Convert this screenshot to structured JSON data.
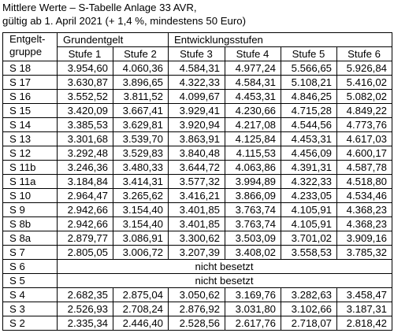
{
  "title_line1": "Mittlere Werte – S-Tabelle Anlage 33 AVR,",
  "title_line2": "gültig ab 1. April 2021 (+ 1,4 %, mindestens 50 Euro)",
  "corner_label_line1": "Entgelt-",
  "corner_label_line2": "gruppe",
  "header_grundentgelt": "Grundentgelt",
  "header_entwicklungsstufen": "Entwicklungsstufen",
  "stufen": [
    "Stufe 1",
    "Stufe 2",
    "Stufe 3",
    "Stufe 4",
    "Stufe 5",
    "Stufe 6"
  ],
  "rows": [
    {
      "group": "S 18",
      "values": [
        "3.954,60",
        "4.060,36",
        "4.584,31",
        "4.977,24",
        "5.566,65",
        "5.926,84"
      ]
    },
    {
      "group": "S 17",
      "values": [
        "3.630,87",
        "3.896,65",
        "4.322,33",
        "4.584,31",
        "5.108,21",
        "5.416,02"
      ]
    },
    {
      "group": "S 16",
      "values": [
        "3.552,52",
        "3.811,52",
        "4.099,67",
        "4.453,31",
        "4.846,25",
        "5.082,02"
      ]
    },
    {
      "group": "S 15",
      "values": [
        "3.420,09",
        "3.667,41",
        "3.929,41",
        "4.230,66",
        "4.715,28",
        "4.849,22"
      ]
    },
    {
      "group": "S 14",
      "values": [
        "3.385,53",
        "3.629,81",
        "3.920,94",
        "4.217,08",
        "4.544,56",
        "4.773,76"
      ]
    },
    {
      "group": "S 13",
      "values": [
        "3.301,68",
        "3.539,70",
        "3.863,91",
        "4.125,84",
        "4.453,31",
        "4.617,03"
      ]
    },
    {
      "group": "S 12",
      "values": [
        "3.292,48",
        "3.529,83",
        "3.840,48",
        "4.115,53",
        "4.456,09",
        "4.600,17"
      ]
    },
    {
      "group": "S 11b",
      "values": [
        "3.246,36",
        "3.480,33",
        "3.644,72",
        "4.063,86",
        "4.391,31",
        "4.587,78"
      ]
    },
    {
      "group": "S 11a",
      "values": [
        "3.184,84",
        "3.414,31",
        "3.577,32",
        "3.994,89",
        "4.322,33",
        "4.518,80"
      ]
    },
    {
      "group": "S 10",
      "values": [
        "2.964,47",
        "3.265,62",
        "3.416,21",
        "3.866,09",
        "4.233,05",
        "4.534,46"
      ]
    },
    {
      "group": "S 9",
      "values": [
        "2.942,66",
        "3.154,40",
        "3.401,85",
        "3.763,74",
        "4.105,91",
        "4.368,23"
      ]
    },
    {
      "group": "S 8b",
      "values": [
        "2.942,66",
        "3.154,40",
        "3.401,85",
        "3.763,74",
        "4.105,91",
        "4.368,23"
      ]
    },
    {
      "group": "S 8a",
      "values": [
        "2.879,77",
        "3.086,91",
        "3.300,62",
        "3.503,09",
        "3.701,02",
        "3.909,16"
      ]
    },
    {
      "group": "S 7",
      "values": [
        "2.805,05",
        "3.006,72",
        "3.207,39",
        "3.408,02",
        "3.558,53",
        "3.785,32"
      ]
    },
    {
      "group": "S 6",
      "note": "nicht besetzt"
    },
    {
      "group": "S 5",
      "note": "nicht besetzt"
    },
    {
      "group": "S 4",
      "values": [
        "2.682,35",
        "2.875,04",
        "3.050,62",
        "3.169,76",
        "3.282,63",
        "3.458,47"
      ]
    },
    {
      "group": "S 3",
      "values": [
        "2.526,93",
        "2.708,24",
        "2.876,92",
        "3.031,80",
        "3.102,66",
        "3.187,31"
      ]
    },
    {
      "group": "S 2",
      "values": [
        "2.335,34",
        "2.446,40",
        "2.528,56",
        "2.617,76",
        "2.718,07",
        "2.818,42"
      ]
    }
  ]
}
